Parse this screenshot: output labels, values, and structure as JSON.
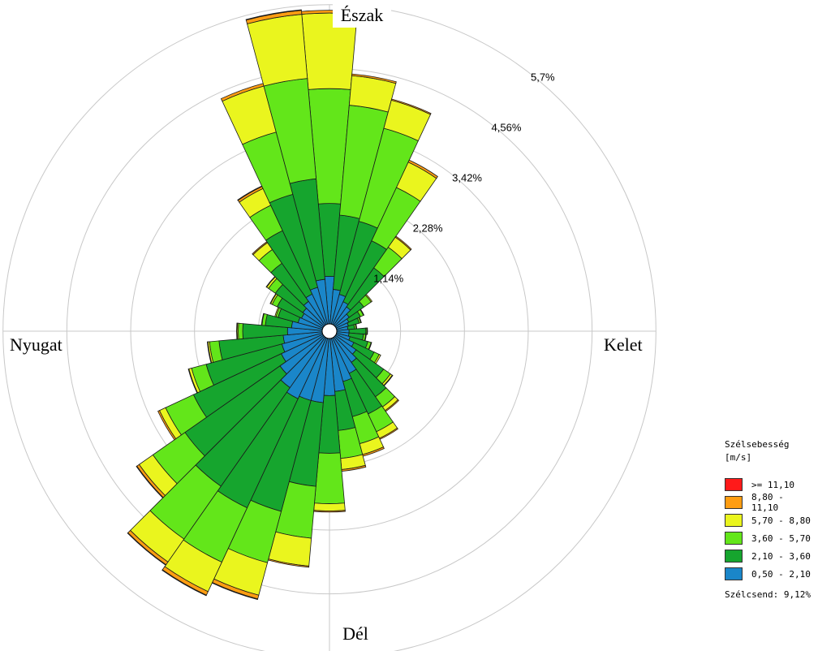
{
  "chart_data": {
    "type": "polar-bar",
    "title": "",
    "compass": {
      "north": "Észak",
      "east": "Kelet",
      "south": "Dél",
      "west": "Nyugat"
    },
    "ring_labels": [
      "1,14%",
      "2,28%",
      "3,42%",
      "4,56%",
      "5,7%"
    ],
    "ring_values": [
      1.14,
      2.28,
      3.42,
      4.56,
      5.7
    ],
    "sectors": 36,
    "start_angle_deg": 0,
    "legend_title_line1": "Szélsebesség",
    "legend_title_line2": "[m/s]",
    "bins": [
      {
        "label": "0,50 - 2,10",
        "color": "#1a86c9"
      },
      {
        "label": "2,10 - 3,60",
        "color": "#16a52e"
      },
      {
        "label": "3,60 - 5,70",
        "color": "#63e61a"
      },
      {
        "label": "5,70 - 8,80",
        "color": "#eaf51e"
      },
      {
        "label": "8,80 - 11,10",
        "color": "#ff9d12"
      },
      {
        "label": ">= 11,10",
        "color": "#ff1a1a"
      }
    ],
    "calm_label": "Szélcsend: 9,12%",
    "cumulative": [
      [
        0.85,
        2.15,
        4.2,
        5.55,
        5.6,
        5.6
      ],
      [
        0.62,
        1.95,
        3.92,
        4.45,
        4.48,
        4.48
      ],
      [
        0.55,
        1.9,
        3.62,
        4.14,
        4.16,
        4.16
      ],
      [
        0.45,
        1.65,
        2.7,
        3.2,
        3.24,
        3.24
      ],
      [
        0.4,
        1.25,
        1.7,
        1.92,
        1.94,
        1.94
      ],
      [
        0.3,
        0.62,
        0.78,
        0.8,
        0.8,
        0.8
      ],
      [
        0.25,
        0.48,
        0.54,
        0.55,
        0.55,
        0.55
      ],
      [
        0.22,
        0.42,
        0.45,
        0.46,
        0.46,
        0.46
      ],
      [
        0.2,
        0.32,
        0.35,
        0.36,
        0.36,
        0.36
      ],
      [
        0.22,
        0.52,
        0.54,
        0.55,
        0.55,
        0.55
      ],
      [
        0.22,
        0.48,
        0.52,
        0.53,
        0.53,
        0.53
      ],
      [
        0.25,
        0.58,
        0.64,
        0.65,
        0.65,
        0.65
      ],
      [
        0.35,
        0.75,
        0.85,
        0.88,
        0.88,
        0.88
      ],
      [
        0.45,
        1.05,
        1.2,
        1.24,
        1.25,
        1.25
      ],
      [
        0.55,
        1.3,
        1.52,
        1.6,
        1.62,
        1.62
      ],
      [
        0.7,
        1.5,
        1.85,
        1.98,
        2.0,
        2.0
      ],
      [
        0.8,
        1.45,
        1.95,
        2.15,
        2.18,
        2.18
      ],
      [
        0.95,
        1.65,
        2.15,
        2.35,
        2.38,
        2.38
      ],
      [
        1.02,
        2.05,
        2.95,
        3.08,
        3.1,
        3.1
      ],
      [
        1.15,
        2.65,
        3.58,
        4.08,
        4.1,
        4.1
      ],
      [
        1.15,
        3.2,
        4.15,
        4.75,
        4.82,
        4.83
      ],
      [
        1.2,
        3.35,
        4.42,
        5.0,
        5.07,
        5.08
      ],
      [
        1.1,
        3.25,
        4.4,
        4.9,
        4.96,
        4.97
      ],
      [
        0.95,
        3.02,
        3.72,
        4.02,
        4.07,
        4.08
      ],
      [
        0.82,
        2.55,
        3.1,
        3.22,
        3.25,
        3.25
      ],
      [
        0.75,
        2.15,
        2.42,
        2.47,
        2.48,
        2.48
      ],
      [
        0.7,
        1.85,
        2.02,
        2.05,
        2.06,
        2.06
      ],
      [
        0.62,
        1.42,
        1.5,
        1.52,
        1.53,
        1.53
      ],
      [
        0.55,
        1.02,
        1.08,
        1.09,
        1.09,
        1.09
      ],
      [
        0.45,
        0.82,
        0.86,
        0.88,
        0.88,
        0.88
      ],
      [
        0.42,
        0.9,
        1.0,
        1.03,
        1.04,
        1.04
      ],
      [
        0.45,
        1.05,
        1.2,
        1.24,
        1.25,
        1.25
      ],
      [
        0.52,
        1.35,
        1.65,
        1.8,
        1.82,
        1.82
      ],
      [
        0.6,
        1.85,
        2.35,
        2.68,
        2.72,
        2.73
      ],
      [
        0.68,
        2.4,
        3.55,
        4.4,
        4.45,
        4.45
      ],
      [
        0.8,
        2.6,
        4.4,
        5.55,
        5.62,
        5.63
      ]
    ]
  }
}
